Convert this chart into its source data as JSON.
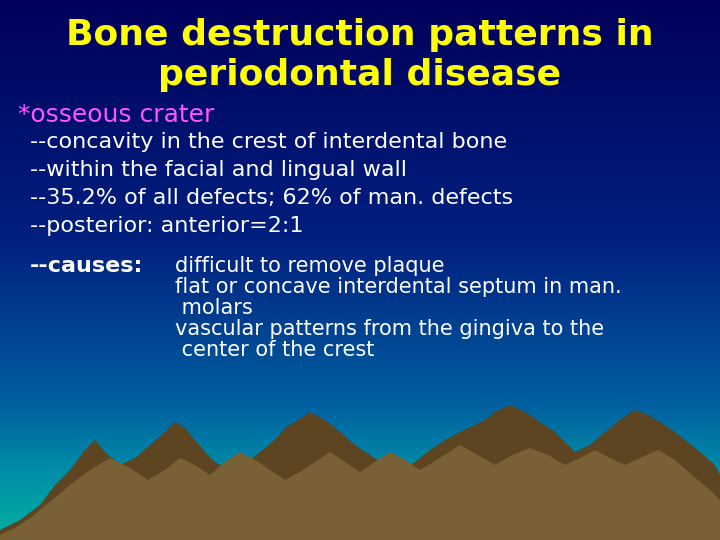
{
  "title_line1": "Bone destruction patterns in",
  "title_line2": "periodontal disease",
  "title_color": "#FFFF00",
  "title_fontsize": 26,
  "title_fontweight": "bold",
  "bg_top_color": "#00005A",
  "osseous_text": "*osseous crater",
  "osseous_color": "#FF55FF",
  "osseous_fontsize": 18,
  "bullet_color": "#FFFFFF",
  "bullet_fontsize": 16,
  "bullets": [
    "--concavity in the crest of interdental bone",
    "--within the facial and lingual wall",
    "--35.2% of all defects; 62% of man. defects",
    "--posterior: anterior=2:1"
  ],
  "causes_label": "--causes:",
  "causes_label_color": "#FFFFFF",
  "causes_label_fontweight": "bold",
  "causes_lines": [
    "difficult to remove plaque",
    "flat or concave interdental septum in man.",
    " molars",
    "vascular patterns from the gingiva to the",
    " center of the crest"
  ],
  "causes_color": "#FFFFFF",
  "causes_fontsize": 15,
  "mountain_color1": "#5C4520",
  "mountain_color2": "#7A6035",
  "water_color": "#00D4BB",
  "font_family": "DejaVu Sans"
}
